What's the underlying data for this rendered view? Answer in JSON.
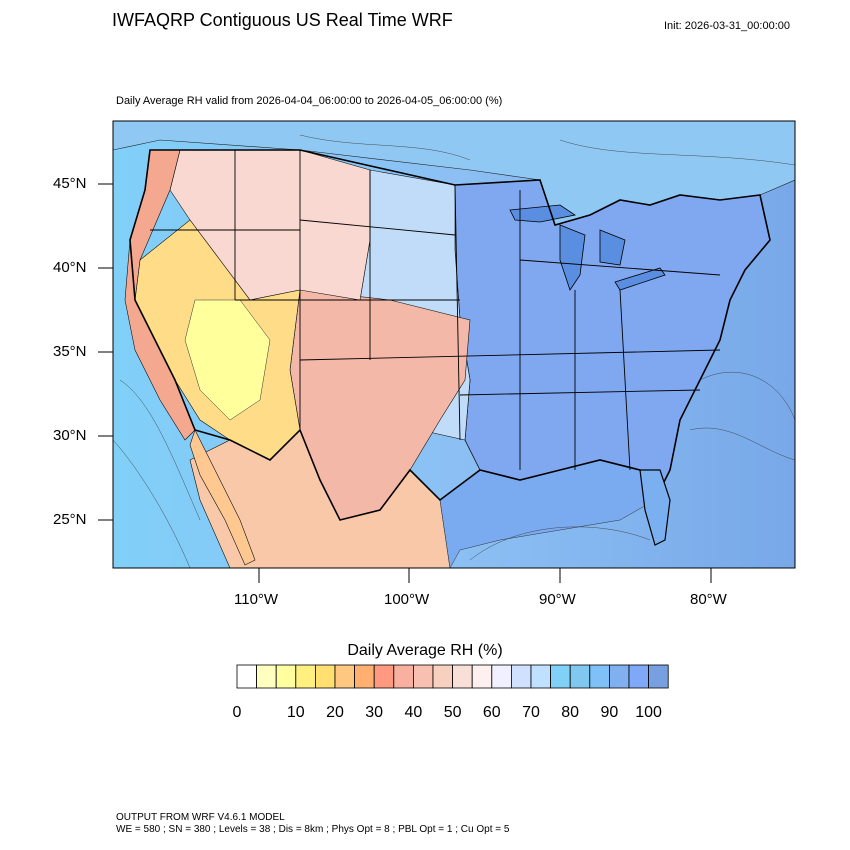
{
  "header": {
    "title": "IWFAQRP Contiguous US Real Time WRF",
    "init": "Init: 2026-03-31_00:00:00"
  },
  "map": {
    "subtitle": "Daily Average RH valid from 2026-04-04_06:00:00 to 2026-04-05_06:00:00   (%)",
    "lat_labels": [
      "45°N",
      "40°N",
      "35°N",
      "30°N",
      "25°N"
    ],
    "lon_labels": [
      "110°W",
      "100°W",
      "90°W",
      "80°W"
    ],
    "ocean_color": "#8fb8f0"
  },
  "colorbar": {
    "title": "Daily Average RH  (%)",
    "colors": [
      "#ffffff",
      "#ffffc0",
      "#ffffa0",
      "#fff080",
      "#ffe070",
      "#ffc880",
      "#ffb070",
      "#ff9a80",
      "#f8b0a0",
      "#f8c0b0",
      "#f8d0c0",
      "#f8e0d8",
      "#fff0f0",
      "#f0f0ff",
      "#d0e0ff",
      "#c0e0ff",
      "#80d0f8",
      "#80c8f0",
      "#80c0f8",
      "#80b0f0",
      "#80a8f8",
      "#78a0e0"
    ],
    "labels": [
      "0",
      "10",
      "20",
      "30",
      "40",
      "50",
      "60",
      "70",
      "80",
      "90",
      "100"
    ]
  },
  "footer": {
    "line1": "OUTPUT FROM WRF V4.6.1 MODEL",
    "line2": "WE = 580 ; SN = 380 ; Levels = 38 ; Dis = 8km ; Phys Opt = 8 ; PBL Opt = 1 ; Cu Opt = 5"
  }
}
